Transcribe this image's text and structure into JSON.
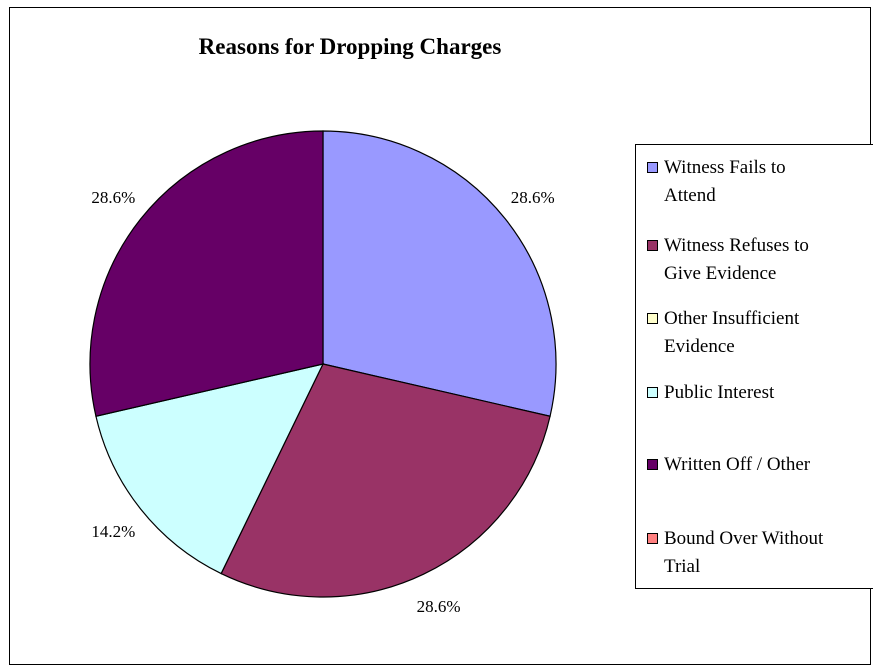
{
  "chart_data": {
    "type": "pie",
    "title": "Reasons for Dropping Charges",
    "legend_position": "right",
    "slices": [
      {
        "label": "Witness Fails to Attend",
        "legend_label": "Witness Fails to\nAttend",
        "value": 28.6,
        "display": "28.6%",
        "color": "#9999FF"
      },
      {
        "label": "Witness Refuses to Give Evidence",
        "legend_label": "Witness Refuses to\nGive Evidence",
        "value": 28.6,
        "display": "28.6%",
        "color": "#993366"
      },
      {
        "label": "Other Insufficient Evidence",
        "legend_label": "Other Insufficient\nEvidence",
        "value": 0,
        "display": "",
        "color": "#FFFFCC"
      },
      {
        "label": "Public Interest",
        "legend_label": "Public Interest",
        "value": 14.2,
        "display": "14.2%",
        "color": "#CCFFFF"
      },
      {
        "label": "Written Off / Other",
        "legend_label": "Written Off / Other",
        "value": 28.6,
        "display": "28.6%",
        "color": "#660066"
      },
      {
        "label": "Bound Over Without Trial",
        "legend_label": "Bound Over Without\nTrial",
        "value": 0,
        "display": "",
        "color": "#FF8080"
      }
    ]
  }
}
